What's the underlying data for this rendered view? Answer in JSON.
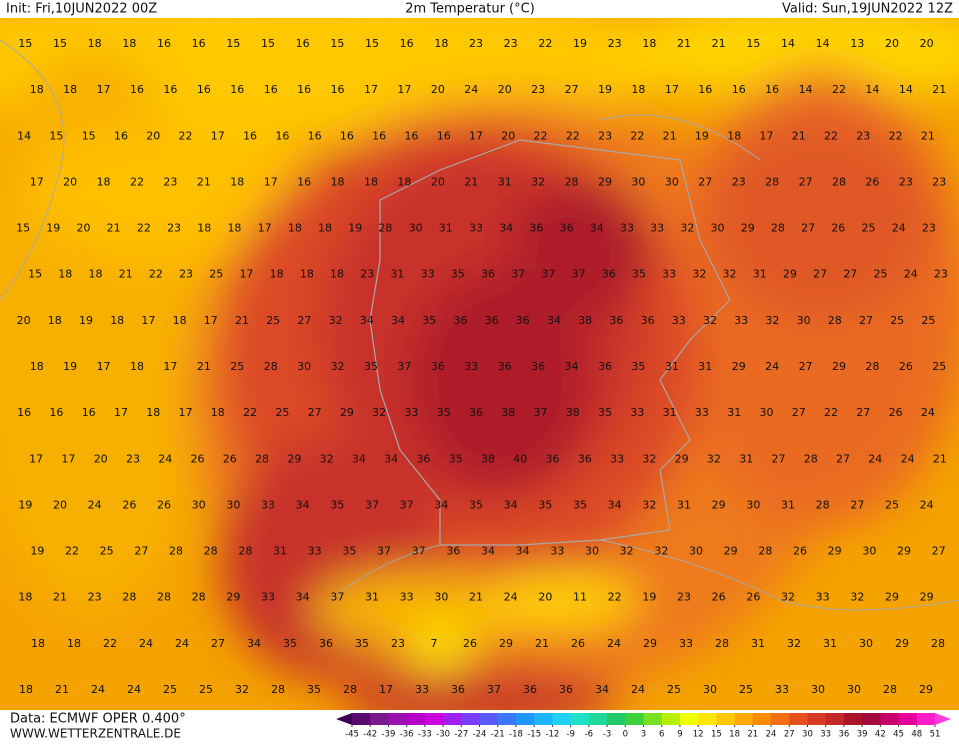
{
  "header": {
    "init": "Init: Fri,10JUN2022 00Z",
    "title": "2m Temperatur (°C)",
    "valid": "Valid: Sun,19JUN2022 12Z"
  },
  "footer": {
    "source": "Data: ECMWF OPER 0.400°",
    "site": "WWW.WETTERZENTRALE.DE"
  },
  "map": {
    "rows": [
      [
        15,
        15,
        18,
        18,
        16,
        16,
        15,
        15,
        16,
        15,
        15,
        16,
        18,
        23,
        23,
        22,
        19,
        23,
        18,
        21,
        21,
        15,
        14,
        14,
        13,
        20,
        20
      ],
      [
        18,
        18,
        17,
        16,
        16,
        16,
        16,
        16,
        16,
        16,
        17,
        17,
        20,
        24,
        20,
        23,
        27,
        19,
        18,
        17,
        16,
        16,
        16,
        14,
        22,
        14,
        14,
        21
      ],
      [
        14,
        15,
        15,
        16,
        20,
        22,
        17,
        16,
        16,
        16,
        16,
        16,
        16,
        16,
        17,
        20,
        22,
        22,
        23,
        22,
        21,
        19,
        18,
        17,
        21,
        22,
        23,
        22,
        21
      ],
      [
        17,
        20,
        18,
        22,
        23,
        21,
        18,
        17,
        16,
        18,
        18,
        18,
        20,
        21,
        31,
        32,
        28,
        29,
        30,
        30,
        27,
        23,
        28,
        27,
        28,
        26,
        23,
        23
      ],
      [
        15,
        19,
        20,
        21,
        22,
        23,
        18,
        18,
        17,
        18,
        18,
        19,
        28,
        30,
        31,
        33,
        34,
        36,
        36,
        34,
        33,
        33,
        32,
        30,
        29,
        28,
        27,
        26,
        25,
        24,
        23
      ],
      [
        15,
        18,
        18,
        21,
        22,
        23,
        25,
        17,
        18,
        18,
        18,
        23,
        31,
        33,
        35,
        36,
        37,
        37,
        37,
        36,
        35,
        33,
        32,
        32,
        31,
        29,
        27,
        27,
        25,
        24,
        23
      ],
      [
        20,
        18,
        19,
        18,
        17,
        18,
        17,
        21,
        25,
        27,
        32,
        34,
        34,
        35,
        36,
        36,
        36,
        34,
        38,
        36,
        36,
        33,
        32,
        33,
        32,
        30,
        28,
        27,
        25,
        25
      ],
      [
        18,
        19,
        17,
        18,
        17,
        21,
        25,
        28,
        30,
        32,
        35,
        37,
        36,
        33,
        36,
        36,
        34,
        36,
        35,
        31,
        31,
        29,
        24,
        27,
        29,
        28,
        26,
        25
      ],
      [
        16,
        16,
        16,
        17,
        18,
        17,
        18,
        22,
        25,
        27,
        29,
        32,
        33,
        35,
        36,
        38,
        37,
        38,
        35,
        33,
        31,
        33,
        31,
        30,
        27,
        22,
        27,
        26,
        24
      ],
      [
        17,
        17,
        20,
        23,
        24,
        26,
        26,
        28,
        29,
        32,
        34,
        34,
        36,
        35,
        38,
        40,
        36,
        36,
        33,
        32,
        29,
        32,
        31,
        27,
        28,
        27,
        24,
        24,
        21
      ],
      [
        19,
        20,
        24,
        26,
        26,
        30,
        30,
        33,
        34,
        35,
        37,
        37,
        34,
        35,
        34,
        35,
        35,
        34,
        32,
        31,
        29,
        30,
        31,
        28,
        27,
        25,
        24
      ],
      [
        19,
        22,
        25,
        27,
        28,
        28,
        28,
        31,
        33,
        35,
        37,
        37,
        36,
        34,
        34,
        33,
        30,
        32,
        32,
        30,
        29,
        28,
        26,
        29,
        30,
        29,
        27
      ],
      [
        18,
        21,
        23,
        28,
        28,
        28,
        29,
        33,
        34,
        37,
        31,
        33,
        30,
        21,
        24,
        20,
        11,
        22,
        19,
        23,
        26,
        26,
        32,
        33,
        32,
        29,
        29
      ],
      [
        18,
        18,
        22,
        24,
        24,
        27,
        34,
        35,
        36,
        35,
        23,
        7,
        26,
        29,
        21,
        26,
        24,
        29,
        33,
        28,
        31,
        32,
        31,
        30,
        29,
        28
      ],
      [
        18,
        21,
        24,
        24,
        25,
        25,
        32,
        28,
        35,
        28,
        17,
        33,
        36,
        37,
        36,
        36,
        34,
        24,
        25,
        30,
        25,
        33,
        30,
        30,
        28,
        29
      ]
    ]
  },
  "colorbar": {
    "ticks": [
      -45,
      -42,
      -39,
      -36,
      -33,
      -30,
      -27,
      -24,
      -21,
      -18,
      -15,
      -12,
      -9,
      -6,
      -3,
      0,
      3,
      6,
      9,
      12,
      15,
      18,
      21,
      24,
      27,
      30,
      33,
      36,
      39,
      42,
      45,
      48,
      51
    ],
    "colors": [
      "#3c0050",
      "#5a0a6e",
      "#7b1a8e",
      "#9b10b0",
      "#b400c8",
      "#cc00dc",
      "#a020f0",
      "#7a3cff",
      "#5a5aff",
      "#3c78ff",
      "#2096ff",
      "#20b4ff",
      "#20d2f0",
      "#20e0c8",
      "#20d898",
      "#20c868",
      "#3cd03c",
      "#78e020",
      "#b4f000",
      "#f0ff00",
      "#ffe600",
      "#ffc800",
      "#ffaa00",
      "#ff8c00",
      "#f46e14",
      "#e6501e",
      "#d63c23",
      "#c42828",
      "#aa1428",
      "#a00a3c",
      "#c8006e",
      "#e6009b",
      "#ff1ec8",
      "#ff3cdc"
    ]
  }
}
